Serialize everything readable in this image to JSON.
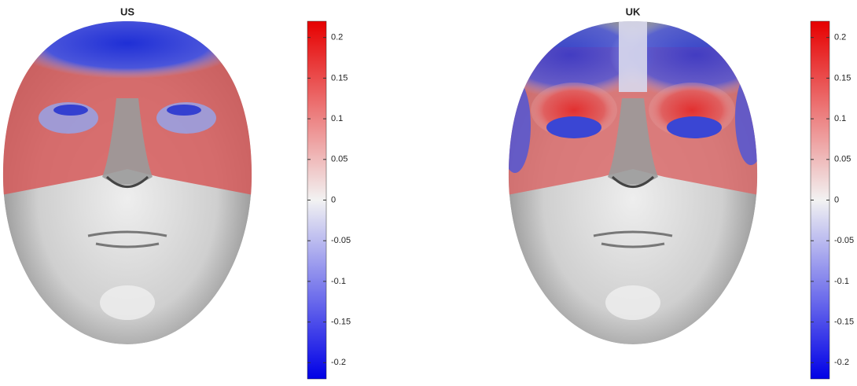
{
  "panels": [
    {
      "title": "US",
      "colorbar": {
        "lim": [
          -0.22,
          0.22
        ],
        "ticks": [
          0.2,
          0.15,
          0.1,
          0.05,
          0,
          -0.05,
          -0.1,
          -0.15,
          -0.2
        ]
      }
    },
    {
      "title": "UK",
      "colorbar": {
        "lim": [
          -0.22,
          0.22
        ],
        "ticks": [
          0.2,
          0.15,
          0.1,
          0.05,
          0,
          -0.05,
          -0.1,
          -0.15,
          -0.2
        ]
      }
    }
  ]
}
